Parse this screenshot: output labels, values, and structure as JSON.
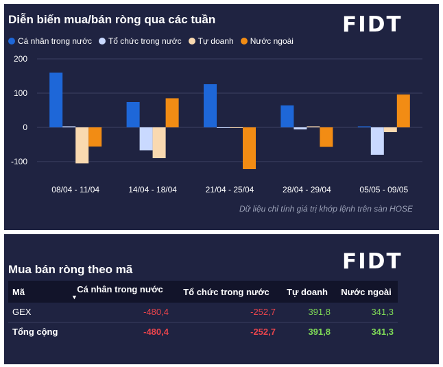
{
  "chart_panel": {
    "title": "Diễn biến mua/bán ròng qua các tuần",
    "logo": "FIDT",
    "note": "Dữ liệu chỉ tính giá trị khớp lệnh trên sàn HOSE"
  },
  "colors": {
    "ca_nhan": "#1e67d8",
    "to_chuc": "#c9d9ff",
    "tu_doanh": "#f9d9b0",
    "nuoc_ngoai": "#f28c14",
    "negative": "#e8444c",
    "positive": "#7ed957"
  },
  "chart_data": {
    "type": "bar",
    "title": "Diễn biến mua/bán ròng qua các tuần",
    "categories": [
      "08/04 - 11/04",
      "14/04 - 18/04",
      "21/04 - 25/04",
      "28/04 - 29/04",
      "05/05 - 09/05"
    ],
    "series": [
      {
        "name": "Cá nhân trong nước",
        "values": [
          160,
          74,
          126,
          64,
          3
        ]
      },
      {
        "name": "Tổ chức trong nước",
        "values": [
          3,
          -67,
          -2,
          -6,
          -80
        ]
      },
      {
        "name": "Tự doanh",
        "values": [
          -105,
          -90,
          -2,
          3,
          -14
        ]
      },
      {
        "name": "Nước ngoài",
        "values": [
          -56,
          85,
          -122,
          -57,
          96
        ]
      }
    ],
    "ylim": [
      -100,
      200
    ],
    "yticks": [
      -100,
      0,
      100,
      200
    ],
    "xlabel": "",
    "ylabel": "",
    "legend": "top-left"
  },
  "table_panel": {
    "title": "Mua bán ròng theo mã",
    "logo": "FIDT",
    "headers": [
      "Mã",
      "Cá nhân trong nước",
      "Tổ chức trong nước",
      "Tự doanh",
      "Nước ngoài"
    ],
    "sort_indicator": "▼",
    "rows": [
      {
        "ma": "GEX",
        "ca_nhan": "-480,4",
        "to_chuc": "-252,7",
        "tu_doanh": "391,8",
        "nuoc_ngoai": "341,3"
      }
    ],
    "total": {
      "ma": "Tổng cộng",
      "ca_nhan": "-480,4",
      "to_chuc": "-252,7",
      "tu_doanh": "391,8",
      "nuoc_ngoai": "341,3"
    }
  }
}
